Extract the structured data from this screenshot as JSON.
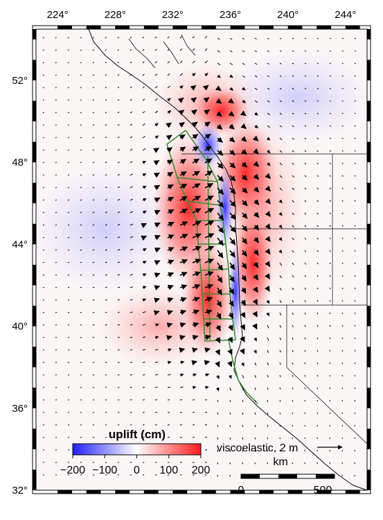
{
  "map": {
    "lon_ticks": [
      "224°",
      "228°",
      "232°",
      "236°",
      "240°",
      "244°"
    ],
    "lon_values": [
      224,
      228,
      232,
      236,
      240,
      244
    ],
    "lat_ticks": [
      "52°",
      "48°",
      "44°",
      "40°",
      "36°",
      "32°"
    ],
    "lat_values": [
      52,
      48,
      44,
      40,
      36,
      32
    ],
    "lon_range": [
      222.5,
      245.5
    ],
    "lat_range": [
      32,
      54.5
    ]
  },
  "colorbar": {
    "title": "uplift (cm)",
    "tick_labels": [
      "−200",
      "−100",
      "0",
      "100",
      "200"
    ],
    "tick_values": [
      -200,
      -100,
      0,
      100,
      200
    ],
    "colors": {
      "min": "#2020ff",
      "mid": "#ffffff",
      "max": "#ff1a1a"
    }
  },
  "reference_vector": {
    "label": "viscoelastic, 2 m",
    "magnitude_m": 2
  },
  "scale_bar": {
    "unit": "km",
    "labels": [
      "0",
      "500"
    ],
    "length_km": 500
  },
  "colors": {
    "uplift_positive": "#ff3030",
    "subsidence_negative": "#3030ff",
    "fault_patches": "#2e8b2e",
    "vectors": "#000000",
    "coastline": "#000000"
  }
}
